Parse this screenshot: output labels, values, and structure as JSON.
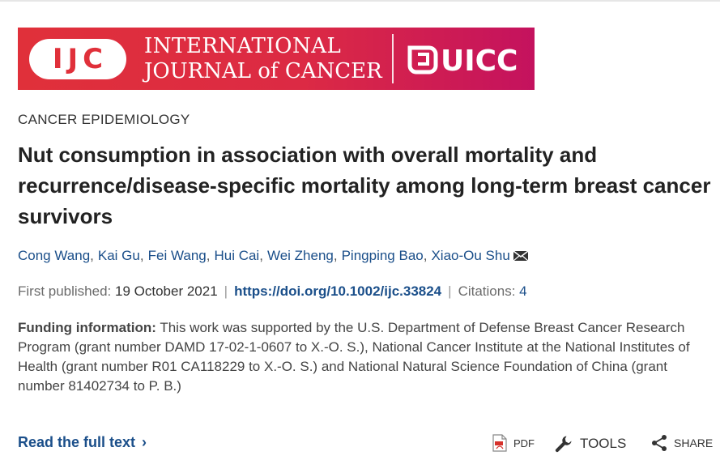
{
  "banner": {
    "ijc_text": "IJC",
    "journal_line1": "INTERNATIONAL",
    "journal_line2": "JOURNAL of CANCER",
    "org_text": "UICC",
    "gradient_start": "#e0303a",
    "gradient_end": "#c4125e"
  },
  "article": {
    "category": "CANCER EPIDEMIOLOGY",
    "title": "Nut consumption in association with overall mortality and recurrence/disease-specific mortality among long-term breast cancer survivors",
    "authors": [
      "Cong Wang",
      "Kai Gu",
      "Fei Wang",
      "Hui Cai",
      "Wei Zheng",
      "Pingping Bao",
      "Xiao-Ou Shu"
    ],
    "author_separator": ",",
    "corresponding_icon": "envelope-icon",
    "first_published_label": "First published:",
    "first_published_date": "19 October 2021",
    "doi": "https://doi.org/10.1002/ijc.33824",
    "citations_label": "Citations:",
    "citations_count": "4",
    "divider": "|",
    "funding_label": "Funding information:",
    "funding_text": " This work was supported by the U.S. Department of Defense Breast Cancer Research Program (grant number DAMD 17-02-1-0607 to X.-O. S.), National Cancer Institute at the National Institutes of Health (grant number R01 CA118229 to X.-O. S.) and National Natural Science Foundation of China (grant number 81402734 to P. B.)"
  },
  "actions": {
    "read_full_text": "Read the full text",
    "read_chevron": "›",
    "pdf_label": "PDF",
    "tools_label": "TOOLS",
    "share_label": "SHARE"
  },
  "colors": {
    "link": "#1b4f8a",
    "text": "#222222"
  }
}
